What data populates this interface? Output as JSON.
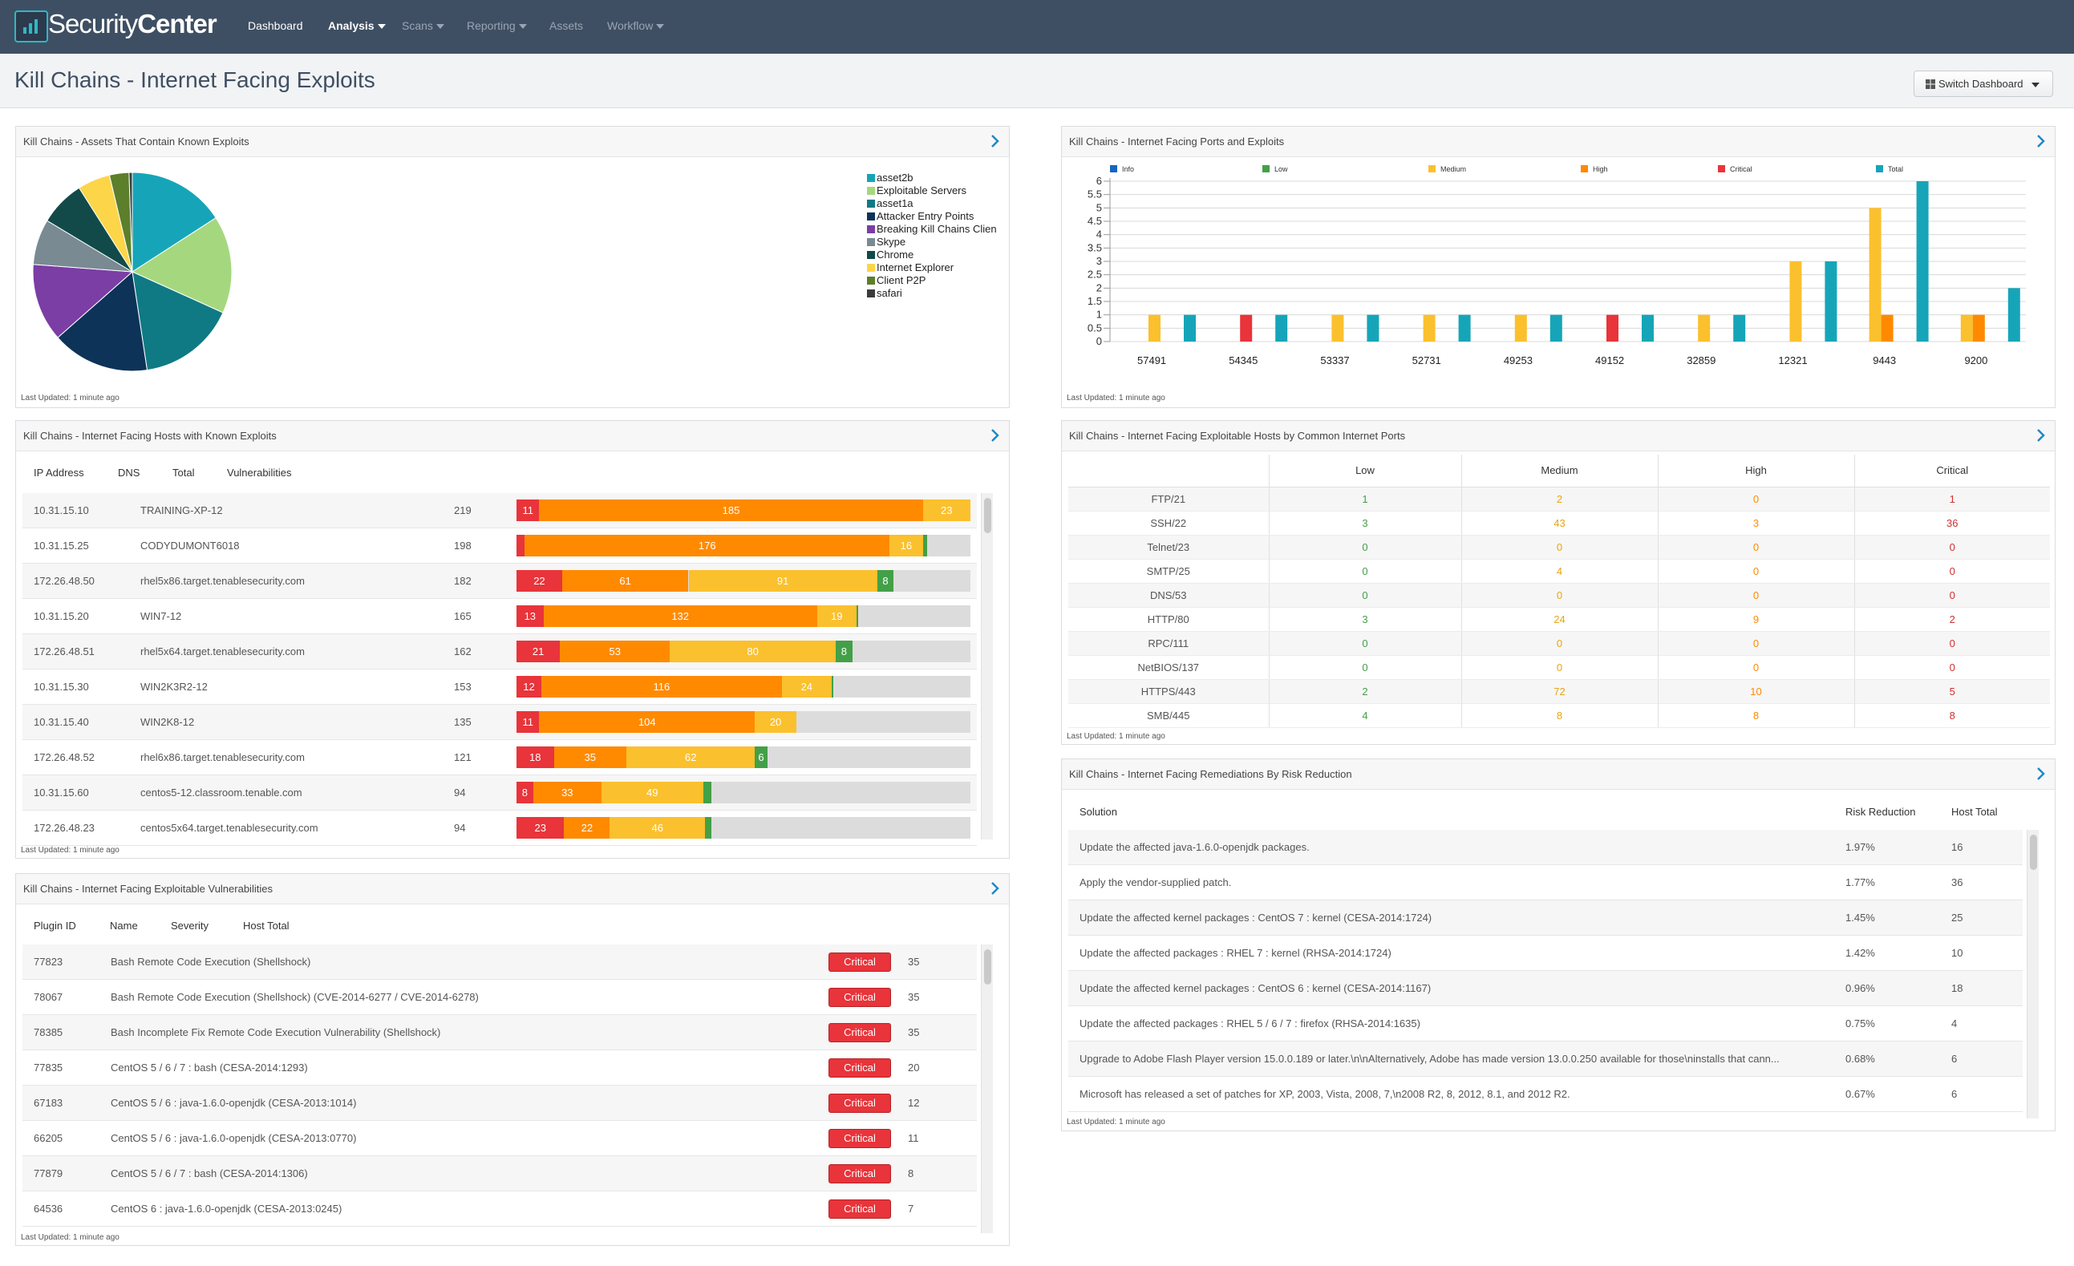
{
  "nav": {
    "brand_a": "Security",
    "brand_b": "Center",
    "items": [
      "Dashboard",
      "Analysis",
      "Scans",
      "Reporting",
      "Assets",
      "Workflow"
    ]
  },
  "page_title": "Kill Chains - Internet Facing Exploits",
  "switch_dashboard": "Switch Dashboard",
  "last_updated": "Last Updated: 1 minute ago",
  "colors": {
    "critical": "#e8343a",
    "high": "#ff8a00",
    "medium": "#fbc02d",
    "low": "#43a047",
    "info": "#1565c0",
    "total": "#16a5b8",
    "nav": "#3f4f63"
  },
  "pie_panel": {
    "title": "Kill Chains - Assets That Contain Known Exploits",
    "chart_data": {
      "type": "pie",
      "labels": [
        "asset2b",
        "Exploitable Servers",
        "asset1a",
        "Attacker Entry Points",
        "Breaking Kill Chains Clien",
        "Skype",
        "Chrome",
        "Internet Explorer",
        "Client P2P",
        "safari"
      ],
      "values": [
        15,
        15,
        15,
        15,
        12,
        7,
        7,
        5,
        3,
        0.5
      ],
      "colors": [
        "#16a5b8",
        "#a5d87e",
        "#0f7a84",
        "#0d3358",
        "#7b3ea4",
        "#7a8a93",
        "#124a4a",
        "#fdd549",
        "#5c7f2b",
        "#3b3b3b"
      ]
    }
  },
  "bar_panel": {
    "title": "Kill Chains - Internet Facing Ports and Exploits",
    "chart_data": {
      "type": "bar",
      "categories": [
        "57491",
        "54345",
        "53337",
        "52731",
        "49253",
        "49152",
        "32859",
        "12321",
        "9443",
        "9200"
      ],
      "series": [
        {
          "name": "Info",
          "color": "#1565c0",
          "values": [
            0,
            0,
            0,
            0,
            0,
            0,
            0,
            0,
            0,
            0
          ]
        },
        {
          "name": "Low",
          "color": "#43a047",
          "values": [
            0,
            0,
            0,
            0,
            0,
            0,
            0,
            0,
            0,
            0
          ]
        },
        {
          "name": "Medium",
          "color": "#fbc02d",
          "values": [
            1,
            0,
            1,
            1,
            1,
            0,
            1,
            3,
            5,
            1
          ]
        },
        {
          "name": "High",
          "color": "#ff8a00",
          "values": [
            0,
            0,
            0,
            0,
            0,
            0,
            0,
            0,
            1,
            1
          ]
        },
        {
          "name": "Critical",
          "color": "#e8343a",
          "values": [
            0,
            1,
            0,
            0,
            0,
            1,
            0,
            0,
            0,
            0
          ]
        },
        {
          "name": "Total",
          "color": "#16a5b8",
          "values": [
            1,
            1,
            1,
            1,
            1,
            1,
            1,
            3,
            6,
            2
          ]
        }
      ],
      "yticks": [
        "0",
        "0.5",
        "1",
        "1.5",
        "2",
        "2.5",
        "3",
        "3.5",
        "4",
        "4.5",
        "5",
        "5.5",
        "6"
      ],
      "ylim": [
        0,
        6
      ],
      "legend": "top"
    }
  },
  "hosts_panel": {
    "title": "Kill Chains - Internet Facing Hosts with Known Exploits",
    "headers": [
      "IP Address",
      "DNS",
      "Total",
      "Vulnerabilities"
    ],
    "rows": [
      {
        "ip": "10.31.15.10",
        "dns": "TRAINING-XP-12",
        "total": "219",
        "critical": 11,
        "high": 185,
        "medium": 23,
        "low": 0
      },
      {
        "ip": "10.31.15.25",
        "dns": "CODYDUMONT6018",
        "total": "198",
        "critical": 4,
        "high": 176,
        "medium": 16,
        "low": 2
      },
      {
        "ip": "172.26.48.50",
        "dns": "rhel5x86.target.tenablesecurity.com",
        "total": "182",
        "critical": 22,
        "high": 61,
        "medium": 91,
        "low": 8
      },
      {
        "ip": "10.31.15.20",
        "dns": "WIN7-12",
        "total": "165",
        "critical": 13,
        "high": 132,
        "medium": 19,
        "low": 1
      },
      {
        "ip": "172.26.48.51",
        "dns": "rhel5x64.target.tenablesecurity.com",
        "total": "162",
        "critical": 21,
        "high": 53,
        "medium": 80,
        "low": 8
      },
      {
        "ip": "10.31.15.30",
        "dns": "WIN2K3R2-12",
        "total": "153",
        "critical": 12,
        "high": 116,
        "medium": 24,
        "low": 1
      },
      {
        "ip": "10.31.15.40",
        "dns": "WIN2K8-12",
        "total": "135",
        "critical": 11,
        "high": 104,
        "medium": 20,
        "low": 0
      },
      {
        "ip": "172.26.48.52",
        "dns": "rhel6x86.target.tenablesecurity.com",
        "total": "121",
        "critical": 18,
        "high": 35,
        "medium": 62,
        "low": 6
      },
      {
        "ip": "10.31.15.60",
        "dns": "centos5-12.classroom.tenable.com",
        "total": "94",
        "critical": 8,
        "high": 33,
        "medium": 49,
        "low": 4
      },
      {
        "ip": "172.26.48.23",
        "dns": "centos5x64.target.tenablesecurity.com",
        "total": "94",
        "critical": 23,
        "high": 22,
        "medium": 46,
        "low": 3
      }
    ]
  },
  "vulns_panel": {
    "title": "Kill Chains - Internet Facing Exploitable Vulnerabilities",
    "headers": [
      "Plugin ID",
      "Name",
      "Severity",
      "Host Total"
    ],
    "rows": [
      {
        "id": "77823",
        "name": "Bash Remote Code Execution (Shellshock)",
        "severity": "Critical",
        "total": "35"
      },
      {
        "id": "78067",
        "name": "Bash Remote Code Execution (Shellshock) (CVE-2014-6277 / CVE-2014-6278)",
        "severity": "Critical",
        "total": "35"
      },
      {
        "id": "78385",
        "name": "Bash Incomplete Fix Remote Code Execution Vulnerability (Shellshock)",
        "severity": "Critical",
        "total": "35"
      },
      {
        "id": "77835",
        "name": "CentOS 5 / 6 / 7 : bash (CESA-2014:1293)",
        "severity": "Critical",
        "total": "20"
      },
      {
        "id": "67183",
        "name": "CentOS 5 / 6 : java-1.6.0-openjdk (CESA-2013:1014)",
        "severity": "Critical",
        "total": "12"
      },
      {
        "id": "66205",
        "name": "CentOS 5 / 6 : java-1.6.0-openjdk (CESA-2013:0770)",
        "severity": "Critical",
        "total": "11"
      },
      {
        "id": "77879",
        "name": "CentOS 5 / 6 / 7 : bash (CESA-2014:1306)",
        "severity": "Critical",
        "total": "8"
      },
      {
        "id": "64536",
        "name": "CentOS 6 : java-1.6.0-openjdk (CESA-2013:0245)",
        "severity": "Critical",
        "total": "7"
      }
    ]
  },
  "ports_panel": {
    "title": "Kill Chains - Internet Facing Exploitable Hosts by Common Internet Ports",
    "headers": [
      "",
      "Low",
      "Medium",
      "High",
      "Critical"
    ],
    "rows": [
      [
        "FTP/21",
        "1",
        "2",
        "0",
        "1"
      ],
      [
        "SSH/22",
        "3",
        "43",
        "3",
        "36"
      ],
      [
        "Telnet/23",
        "0",
        "0",
        "0",
        "0"
      ],
      [
        "SMTP/25",
        "0",
        "4",
        "0",
        "0"
      ],
      [
        "DNS/53",
        "0",
        "0",
        "0",
        "0"
      ],
      [
        "HTTP/80",
        "3",
        "24",
        "9",
        "2"
      ],
      [
        "RPC/111",
        "0",
        "0",
        "0",
        "0"
      ],
      [
        "NetBIOS/137",
        "0",
        "0",
        "0",
        "0"
      ],
      [
        "HTTPS/443",
        "2",
        "72",
        "10",
        "5"
      ],
      [
        "SMB/445",
        "4",
        "8",
        "8",
        "8"
      ]
    ]
  },
  "remed_panel": {
    "title": "Kill Chains - Internet Facing Remediations By Risk Reduction",
    "headers": [
      "Solution",
      "Risk Reduction",
      "Host Total"
    ],
    "rows": [
      {
        "solution": "Update the affected java-1.6.0-openjdk packages.",
        "risk": "1.97%",
        "hosts": "16"
      },
      {
        "solution": "Apply the vendor-supplied patch.",
        "risk": "1.77%",
        "hosts": "36"
      },
      {
        "solution": "Update the affected kernel packages : CentOS 7 : kernel (CESA-2014:1724)",
        "risk": "1.45%",
        "hosts": "25"
      },
      {
        "solution": "Update the affected packages : RHEL 7 : kernel (RHSA-2014:1724)",
        "risk": "1.42%",
        "hosts": "10"
      },
      {
        "solution": "Update the affected kernel packages : CentOS 6 : kernel (CESA-2014:1167)",
        "risk": "0.96%",
        "hosts": "18"
      },
      {
        "solution": "Update the affected packages : RHEL 5 / 6 / 7 : firefox (RHSA-2014:1635)",
        "risk": "0.75%",
        "hosts": "4"
      },
      {
        "solution": "Upgrade to Adobe Flash Player version 15.0.0.189 or later.\\n\\nAlternatively, Adobe has made version 13.0.0.250 available for those\\ninstalls that cann...",
        "risk": "0.68%",
        "hosts": "6"
      },
      {
        "solution": "Microsoft has released a set of patches for XP, 2003, Vista, 2008, 7,\\n2008 R2, 8, 2012, 8.1, and 2012 R2.",
        "risk": "0.67%",
        "hosts": "6"
      }
    ]
  }
}
